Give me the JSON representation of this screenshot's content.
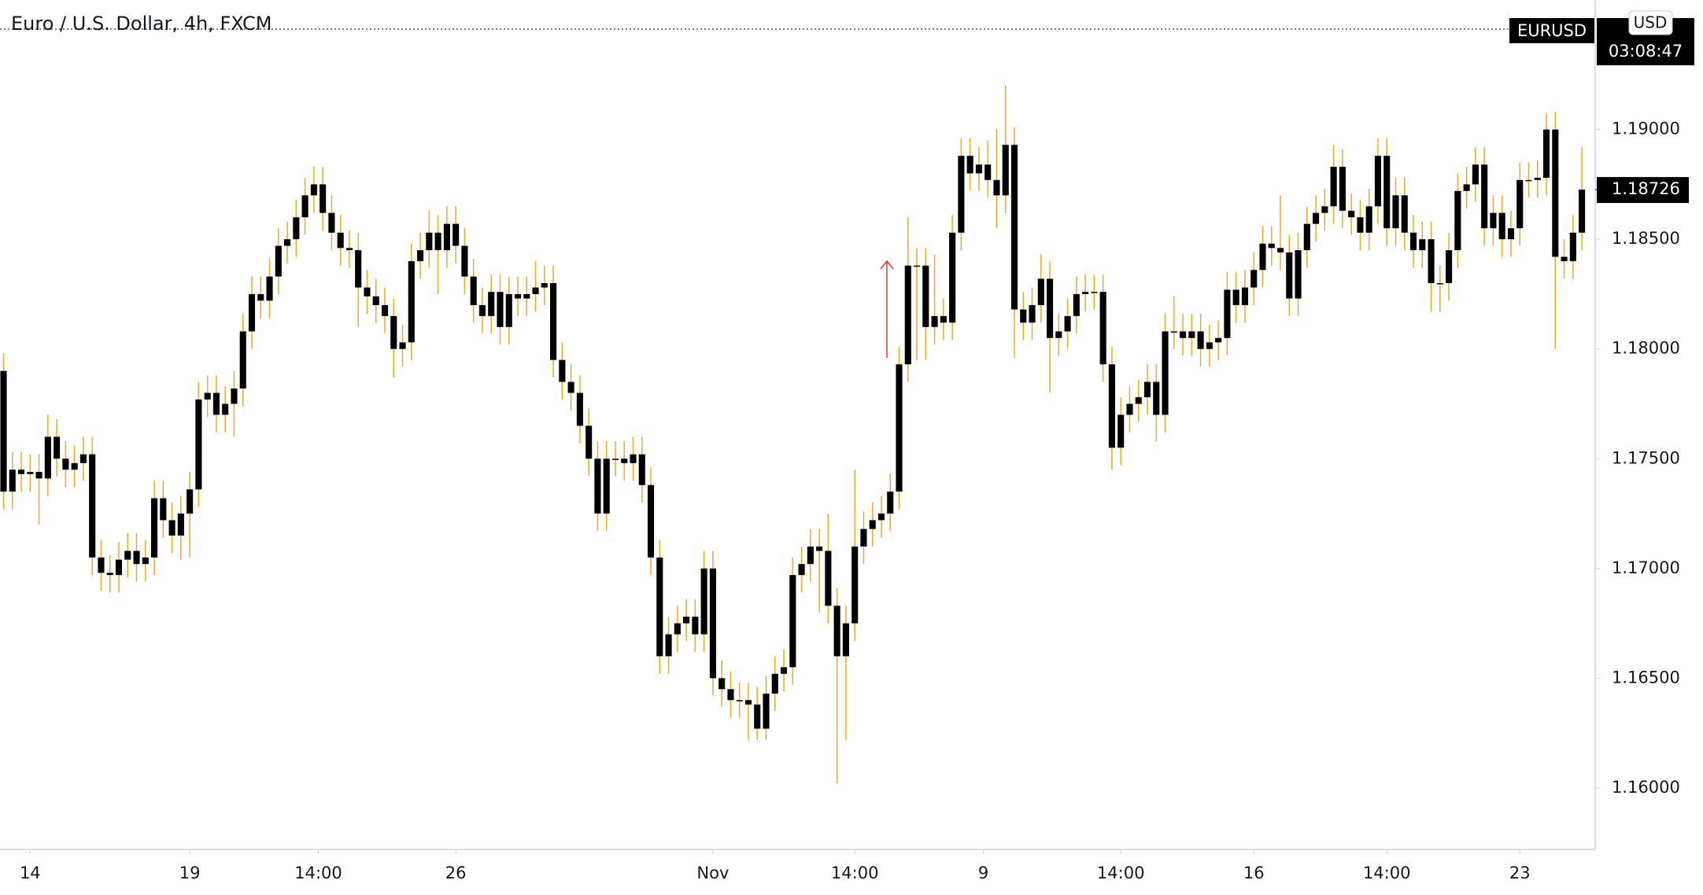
{
  "chart_data": {
    "type": "candlestick",
    "title": "Euro / U.S. Dollar, 4h, FXCM",
    "symbol_badge": "EURUSD",
    "currency": "USD",
    "countdown": "03:08:47",
    "last_price_label": "1.18726",
    "body_color": "#000000",
    "wick_color": "#f5a81c",
    "xlim": [
      -0.4,
      179.5
    ],
    "xticks": [
      {
        "value": 3,
        "label": "14"
      },
      {
        "value": 21,
        "label": "19"
      },
      {
        "value": 35.5,
        "label": "14:00"
      },
      {
        "value": 51,
        "label": "26"
      },
      {
        "value": 80,
        "label": "Nov"
      },
      {
        "value": 96,
        "label": "14:00"
      },
      {
        "value": 110.5,
        "label": "9"
      },
      {
        "value": 126,
        "label": "14:00"
      },
      {
        "value": 141,
        "label": "16"
      },
      {
        "value": 156,
        "label": "14:00"
      },
      {
        "value": 171,
        "label": "23"
      }
    ],
    "ylim": [
      1.1572,
      1.1959
    ],
    "yticks": [
      {
        "value": 1.16,
        "label": "1.16000"
      },
      {
        "value": 1.165,
        "label": "1.16500"
      },
      {
        "value": 1.17,
        "label": "1.17000"
      },
      {
        "value": 1.175,
        "label": "1.17500"
      },
      {
        "value": 1.18,
        "label": "1.18000"
      },
      {
        "value": 1.185,
        "label": "1.18500"
      },
      {
        "value": 1.19,
        "label": "1.19000"
      }
    ],
    "open": [
      1.179,
      1.1735,
      1.1745,
      1.1743,
      1.1744,
      1.1741,
      1.176,
      1.175,
      1.1745,
      1.1748,
      1.1752,
      1.1705,
      1.1698,
      1.1697,
      1.1704,
      1.1708,
      1.1702,
      1.1705,
      1.1732,
      1.1722,
      1.1715,
      1.1725,
      1.1736,
      1.1777,
      1.178,
      1.177,
      1.1775,
      1.1782,
      1.1808,
      1.1825,
      1.1822,
      1.1833,
      1.1847,
      1.185,
      1.186,
      1.187,
      1.1875,
      1.1862,
      1.1853,
      1.1846,
      1.1845,
      1.1828,
      1.1824,
      1.182,
      1.1815,
      1.18,
      1.1803,
      1.184,
      1.1845,
      1.1853,
      1.1845,
      1.1857,
      1.1847,
      1.1833,
      1.182,
      1.1815,
      1.1826,
      1.181,
      1.1825,
      1.1823,
      1.1825,
      1.1828,
      1.183,
      1.1795,
      1.1785,
      1.178,
      1.1765,
      1.175,
      1.1725,
      1.175,
      1.175,
      1.1748,
      1.1752,
      1.1738,
      1.1705,
      1.166,
      1.167,
      1.1675,
      1.1678,
      1.167,
      1.17,
      1.165,
      1.1645,
      1.164,
      1.164,
      1.1638,
      1.1627,
      1.1643,
      1.1652,
      1.1655,
      1.1697,
      1.1702,
      1.171,
      1.1708,
      1.1683,
      1.166,
      1.1675,
      1.171,
      1.1718,
      1.1722,
      1.1725,
      1.1735,
      1.1793,
      1.1838,
      1.1838,
      1.181,
      1.1815,
      1.1812,
      1.1853,
      1.1888,
      1.188,
      1.1884,
      1.1877,
      1.187,
      1.1893,
      1.1818,
      1.1812,
      1.182,
      1.1832,
      1.1805,
      1.1808,
      1.1815,
      1.1825,
      1.1826,
      1.1826,
      1.1793,
      1.1755,
      1.177,
      1.1775,
      1.1778,
      1.1785,
      1.177,
      1.1808,
      1.1808,
      1.1805,
      1.1808,
      1.18,
      1.1803,
      1.1805,
      1.1827,
      1.182,
      1.1828,
      1.1836,
      1.1848,
      1.1846,
      1.1844,
      1.1823,
      1.1845,
      1.1857,
      1.1862,
      1.1865,
      1.1883,
      1.1863,
      1.186,
      1.1853,
      1.1865,
      1.1888,
      1.1855,
      1.187,
      1.1853,
      1.1845,
      1.185,
      1.183,
      1.183,
      1.1845,
      1.1872,
      1.1875,
      1.1884,
      1.1855,
      1.1862,
      1.185,
      1.1855,
      1.1877,
      1.1877,
      1.1878,
      1.19,
      1.1842,
      1.184,
      1.1853
    ],
    "high": [
      1.1798,
      1.1753,
      1.1753,
      1.1752,
      1.1752,
      1.177,
      1.1768,
      1.1758,
      1.1756,
      1.176,
      1.176,
      1.1713,
      1.1706,
      1.1712,
      1.1716,
      1.1716,
      1.1713,
      1.174,
      1.174,
      1.173,
      1.1733,
      1.1744,
      1.1785,
      1.1788,
      1.1788,
      1.1783,
      1.179,
      1.1816,
      1.1833,
      1.1833,
      1.1841,
      1.1855,
      1.1858,
      1.1868,
      1.1878,
      1.1883,
      1.1883,
      1.187,
      1.1861,
      1.1854,
      1.1853,
      1.1836,
      1.1832,
      1.1828,
      1.1823,
      1.1811,
      1.1848,
      1.1853,
      1.1863,
      1.1861,
      1.1865,
      1.1865,
      1.1855,
      1.1841,
      1.1828,
      1.1834,
      1.1834,
      1.1833,
      1.1833,
      1.1833,
      1.184,
      1.1838,
      1.1838,
      1.1803,
      1.1793,
      1.1788,
      1.1773,
      1.1758,
      1.1758,
      1.1758,
      1.1758,
      1.176,
      1.176,
      1.1746,
      1.1713,
      1.1678,
      1.1683,
      1.1686,
      1.1686,
      1.1708,
      1.1708,
      1.1658,
      1.1653,
      1.1648,
      1.1648,
      1.1646,
      1.1651,
      1.166,
      1.1663,
      1.1705,
      1.171,
      1.1718,
      1.1718,
      1.1725,
      1.1691,
      1.1683,
      1.1745,
      1.1726,
      1.173,
      1.1733,
      1.1743,
      1.1801,
      1.186,
      1.1846,
      1.1846,
      1.1843,
      1.1823,
      1.1861,
      1.1896,
      1.1896,
      1.1892,
      1.1895,
      1.19,
      1.192,
      1.1901,
      1.1826,
      1.1828,
      1.1843,
      1.184,
      1.1816,
      1.1823,
      1.1833,
      1.1834,
      1.1834,
      1.1834,
      1.1801,
      1.1778,
      1.1783,
      1.1786,
      1.1793,
      1.1793,
      1.1816,
      1.1824,
      1.1816,
      1.1816,
      1.1816,
      1.1811,
      1.1813,
      1.1835,
      1.1835,
      1.1836,
      1.1844,
      1.1856,
      1.1856,
      1.187,
      1.1852,
      1.1853,
      1.1865,
      1.187,
      1.1873,
      1.1893,
      1.1891,
      1.1871,
      1.1868,
      1.1873,
      1.1896,
      1.1896,
      1.1878,
      1.1878,
      1.1861,
      1.1858,
      1.1858,
      1.1838,
      1.1853,
      1.188,
      1.1883,
      1.1892,
      1.1892,
      1.187,
      1.187,
      1.1863,
      1.1885,
      1.1885,
      1.1886,
      1.1907,
      1.1908,
      1.185,
      1.1861,
      1.1892
    ],
    "low": [
      1.1727,
      1.1727,
      1.1735,
      1.1735,
      1.172,
      1.1733,
      1.1742,
      1.1737,
      1.1737,
      1.174,
      1.1697,
      1.169,
      1.1689,
      1.1689,
      1.1696,
      1.1694,
      1.1694,
      1.1697,
      1.1714,
      1.1707,
      1.1704,
      1.1705,
      1.1728,
      1.1769,
      1.1762,
      1.1762,
      1.176,
      1.1774,
      1.18,
      1.1814,
      1.1814,
      1.1825,
      1.1839,
      1.1842,
      1.1852,
      1.1862,
      1.1854,
      1.1845,
      1.1838,
      1.1837,
      1.181,
      1.1816,
      1.1812,
      1.1807,
      1.1787,
      1.1792,
      1.1795,
      1.1832,
      1.1837,
      1.1825,
      1.1837,
      1.1839,
      1.1825,
      1.1812,
      1.1807,
      1.1807,
      1.1802,
      1.1802,
      1.1815,
      1.1815,
      1.1817,
      1.182,
      1.1787,
      1.1777,
      1.1772,
      1.1757,
      1.1742,
      1.1717,
      1.1717,
      1.1742,
      1.174,
      1.174,
      1.173,
      1.1697,
      1.1652,
      1.1652,
      1.1662,
      1.1667,
      1.1662,
      1.1662,
      1.1642,
      1.1637,
      1.1632,
      1.1632,
      1.1622,
      1.1622,
      1.1622,
      1.1635,
      1.1644,
      1.1647,
      1.1689,
      1.1694,
      1.168,
      1.1675,
      1.1602,
      1.1622,
      1.1667,
      1.1702,
      1.171,
      1.1714,
      1.1717,
      1.1727,
      1.1785,
      1.1795,
      1.1795,
      1.1802,
      1.1804,
      1.1804,
      1.1845,
      1.1872,
      1.1872,
      1.1869,
      1.1855,
      1.1862,
      1.1796,
      1.1804,
      1.1804,
      1.1812,
      1.178,
      1.1797,
      1.18,
      1.1807,
      1.1817,
      1.1818,
      1.1785,
      1.1745,
      1.1747,
      1.1762,
      1.1767,
      1.177,
      1.1758,
      1.1762,
      1.18,
      1.1797,
      1.1797,
      1.1792,
      1.1792,
      1.1795,
      1.1797,
      1.1812,
      1.1812,
      1.182,
      1.1828,
      1.1838,
      1.1836,
      1.1815,
      1.1815,
      1.1837,
      1.1849,
      1.1854,
      1.1857,
      1.1855,
      1.1852,
      1.1845,
      1.1845,
      1.1857,
      1.1847,
      1.1847,
      1.1845,
      1.1837,
      1.1837,
      1.1817,
      1.1817,
      1.1822,
      1.1837,
      1.1864,
      1.1867,
      1.1847,
      1.1847,
      1.1842,
      1.1842,
      1.1847,
      1.1869,
      1.1869,
      1.187,
      1.18,
      1.1832,
      1.1832,
      1.1845
    ],
    "close": [
      1.1735,
      1.1745,
      1.1743,
      1.1744,
      1.1741,
      1.176,
      1.175,
      1.1745,
      1.1748,
      1.1752,
      1.1705,
      1.1698,
      1.1697,
      1.1704,
      1.1708,
      1.1702,
      1.1705,
      1.1732,
      1.1722,
      1.1715,
      1.1725,
      1.1736,
      1.1777,
      1.178,
      1.177,
      1.1775,
      1.1782,
      1.1808,
      1.1825,
      1.1822,
      1.1833,
      1.1847,
      1.185,
      1.186,
      1.187,
      1.1875,
      1.1862,
      1.1853,
      1.1846,
      1.1845,
      1.1828,
      1.1824,
      1.182,
      1.1815,
      1.18,
      1.1803,
      1.184,
      1.1845,
      1.1853,
      1.1845,
      1.1857,
      1.1847,
      1.1833,
      1.182,
      1.1815,
      1.1826,
      1.181,
      1.1825,
      1.1823,
      1.1825,
      1.1828,
      1.183,
      1.1795,
      1.1785,
      1.178,
      1.1765,
      1.175,
      1.1725,
      1.175,
      1.175,
      1.1748,
      1.1752,
      1.1738,
      1.1705,
      1.166,
      1.167,
      1.1675,
      1.1678,
      1.167,
      1.17,
      1.165,
      1.1645,
      1.164,
      1.164,
      1.1638,
      1.1627,
      1.1643,
      1.1652,
      1.1655,
      1.1697,
      1.1702,
      1.171,
      1.1708,
      1.1683,
      1.166,
      1.1675,
      1.171,
      1.1718,
      1.1722,
      1.1725,
      1.1735,
      1.1793,
      1.1838,
      1.1838,
      1.181,
      1.1815,
      1.1812,
      1.1853,
      1.1888,
      1.188,
      1.1884,
      1.1877,
      1.187,
      1.1893,
      1.1818,
      1.1812,
      1.182,
      1.1832,
      1.1805,
      1.1808,
      1.1815,
      1.1825,
      1.1826,
      1.1826,
      1.1793,
      1.1755,
      1.177,
      1.1775,
      1.1778,
      1.1785,
      1.177,
      1.1808,
      1.1808,
      1.1805,
      1.1808,
      1.18,
      1.1803,
      1.1805,
      1.1827,
      1.182,
      1.1828,
      1.1836,
      1.1848,
      1.1846,
      1.1844,
      1.1823,
      1.1845,
      1.1857,
      1.1862,
      1.1865,
      1.1883,
      1.1863,
      1.186,
      1.1853,
      1.1865,
      1.1888,
      1.1855,
      1.187,
      1.1853,
      1.1845,
      1.185,
      1.183,
      1.183,
      1.1845,
      1.1872,
      1.1875,
      1.1884,
      1.1855,
      1.1862,
      1.185,
      1.1855,
      1.1877,
      1.1877,
      1.1878,
      1.19,
      1.1842,
      1.184,
      1.1853,
      1.18726
    ]
  }
}
